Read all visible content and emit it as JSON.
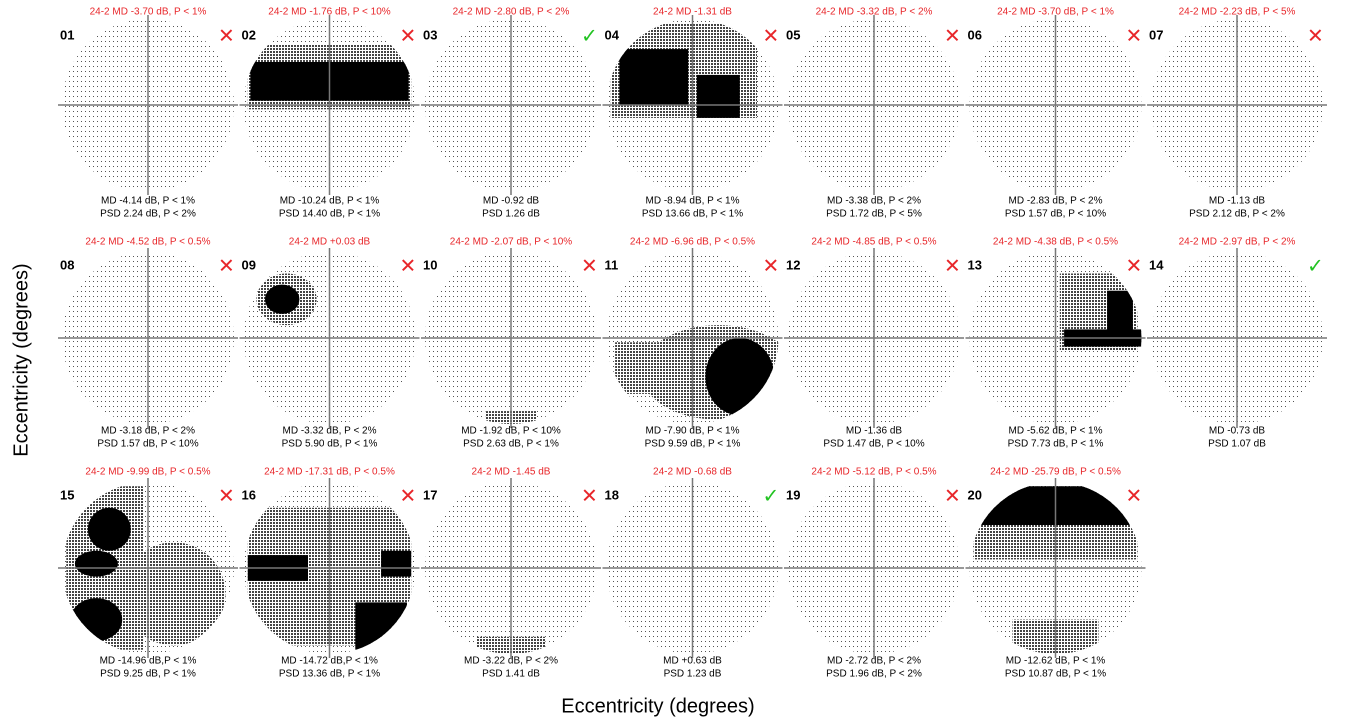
{
  "x_axis_label": "Eccentricity (degrees)",
  "y_axis_label": "Eccentricity (degrees)",
  "panels": [
    {
      "id": "01",
      "top_label": "24-2 MD -3.70 dB, P < 1%",
      "md": "MD -4.14 dB, P < 1%",
      "psd": "PSD 2.24 dB, P < 2%",
      "mark": "✕"
    },
    {
      "id": "02",
      "top_label": "24-2 MD -1.76 dB, P < 10%",
      "md": "MD -10.24 dB, P < 1%",
      "psd": "PSD 14.40 dB, P < 1%",
      "mark": "✕"
    },
    {
      "id": "03",
      "top_label": "24-2 MD -2.80 dB, P < 2%",
      "md": "MD -0.92 dB",
      "psd": "PSD 1.26 dB",
      "mark": "✓"
    },
    {
      "id": "04",
      "top_label": "24-2 MD -1.31 dB",
      "md": "MD -8.94 dB, P < 1%",
      "psd": "PSD 13.66 dB, P < 1%",
      "mark": "✕"
    },
    {
      "id": "05",
      "top_label": "24-2 MD -3.32 dB, P < 2%",
      "md": "MD -3.38 dB, P < 2%",
      "psd": "PSD 1.72 dB, P < 5%",
      "mark": "✕"
    },
    {
      "id": "06",
      "top_label": "24-2 MD -3.70 dB, P < 1%",
      "md": "MD -2.83 dB, P < 2%",
      "psd": "PSD 1.57 dB, P < 10%",
      "mark": "✕"
    },
    {
      "id": "07",
      "top_label": "24-2 MD -2.23 dB, P < 5%",
      "md": "MD -1.13 dB",
      "psd": "PSD 2.12 dB, P < 2%",
      "mark": "✕"
    },
    {
      "id": "08",
      "top_label": "24-2 MD -4.52 dB, P < 0.5%",
      "md": "MD -3.18 dB, P < 2%",
      "psd": "PSD 1.57 dB, P < 10%",
      "mark": "✕"
    },
    {
      "id": "09",
      "top_label": "24-2 MD +0.03 dB",
      "md": "MD -3.32 dB, P < 2%",
      "psd": "PSD 5.90 dB, P < 1%",
      "mark": "✕"
    },
    {
      "id": "10",
      "top_label": "24-2 MD -2.07 dB, P < 10%",
      "md": "MD -1.92 dB, P < 10%",
      "psd": "PSD 2.63 dB, P < 1%",
      "mark": "✕"
    },
    {
      "id": "11",
      "top_label": "24-2 MD -6.96 dB, P < 0.5%",
      "md": "MD -7.90 dB, P < 1%",
      "psd": "PSD 9.59 dB, P < 1%",
      "mark": "✕"
    },
    {
      "id": "12",
      "top_label": "24-2 MD -4.85 dB, P < 0.5%",
      "md": "MD -1.36 dB",
      "psd": "PSD 1.47 dB, P < 10%",
      "mark": "✕"
    },
    {
      "id": "13",
      "top_label": "24-2 MD -4.38 dB, P < 0.5%",
      "md": "MD -5.62 dB, P < 1%",
      "psd": "PSD 7.73 dB, P < 1%",
      "mark": "✕"
    },
    {
      "id": "14",
      "top_label": "24-2 MD -2.97 dB, P < 2%",
      "md": "MD -0.73 dB",
      "psd": "PSD 1.07 dB",
      "mark": "✓"
    },
    {
      "id": "15",
      "top_label": "24-2 MD -9.99 dB, P < 0.5%",
      "md": "MD -14.96 dB,P < 1%",
      "psd": "PSD 9.25 dB, P < 1%",
      "mark": "✕"
    },
    {
      "id": "16",
      "top_label": "24-2 MD -17.31 dB, P < 0.5%",
      "md": "MD -14.72 dB,P < 1%",
      "psd": "PSD 13.36 dB, P < 1%",
      "mark": "✕"
    },
    {
      "id": "17",
      "top_label": "24-2 MD -1.45 dB",
      "md": "MD -3.22 dB, P < 2%",
      "psd": "PSD 1.41 dB",
      "mark": "✕"
    },
    {
      "id": "18",
      "top_label": "24-2 MD -0.68 dB",
      "md": "MD +0.63 dB",
      "psd": "PSD 1.23 dB",
      "mark": "✓"
    },
    {
      "id": "19",
      "top_label": "24-2 MD -5.12 dB, P < 0.5%",
      "md": "MD -2.72 dB, P < 2%",
      "psd": "PSD 1.96 dB, P < 2%",
      "mark": "✕"
    },
    {
      "id": "20",
      "top_label": "24-2 MD -25.79 dB, P < 0.5%",
      "md": "MD -12.62 dB, P < 1%",
      "psd": "PSD 10.87 dB, P < 1%",
      "mark": "✕"
    }
  ]
}
